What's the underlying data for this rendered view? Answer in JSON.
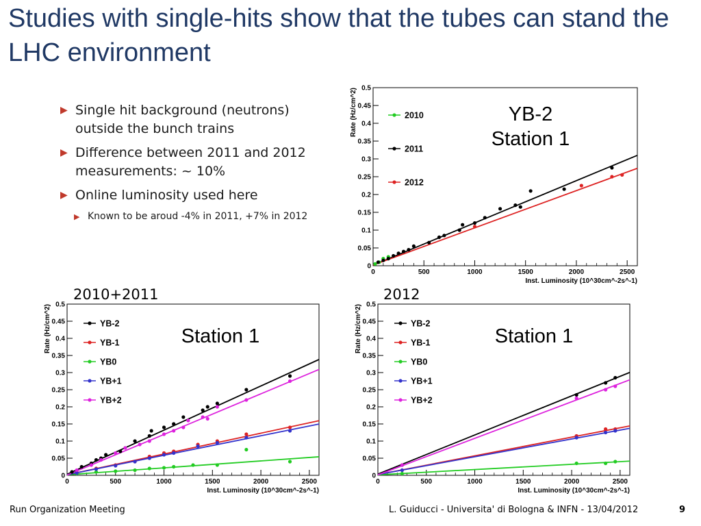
{
  "slide": {
    "title": "Studies with single-hits show that the tubes can stand the LHC environment",
    "bullets": [
      "Single hit background (neutrons) outside the bunch trains",
      "Difference between 2011 and 2012 measurements: ~ 10%",
      "Online luminosity used here"
    ],
    "sub_bullets": [
      "Known to be aroud -4% in 2011, +7% in 2012"
    ],
    "footer_left": "Run Organization Meeting",
    "footer_center": "L. Guiducci - Universita' di Bologna & INFN - 13/04/2012",
    "page_number": "9"
  },
  "chart_data": [
    {
      "type": "scatter",
      "panel_label": "",
      "title_lines": [
        "YB-2",
        "Station 1"
      ],
      "xlabel": "Inst. Luminosity (10^30cm^-2s^-1)",
      "ylabel": "Rate (Hz/cm^2)",
      "xlim": [
        0,
        2600
      ],
      "ylim": [
        0,
        0.5
      ],
      "xticks": [
        0,
        500,
        1000,
        1500,
        2000,
        2500
      ],
      "yticks": [
        0,
        0.05,
        0.1,
        0.15,
        0.2,
        0.25,
        0.3,
        0.35,
        0.4,
        0.45,
        0.5
      ],
      "legend_position": "top-left",
      "series": [
        {
          "name": "2010",
          "color": "#22cc22",
          "fit": [
            0,
            0
          ],
          "points": [
            [
              20,
              0.005
            ],
            [
              60,
              0.01
            ],
            [
              100,
              0.02
            ],
            [
              150,
              0.025
            ]
          ]
        },
        {
          "name": "2011",
          "color": "#000000",
          "fit": [
            0.0017,
            0.0001186
          ],
          "points": [
            [
              50,
              0.01
            ],
            [
              100,
              0.015
            ],
            [
              150,
              0.02
            ],
            [
              200,
              0.028
            ],
            [
              250,
              0.035
            ],
            [
              300,
              0.04
            ],
            [
              350,
              0.045
            ],
            [
              400,
              0.055
            ],
            [
              550,
              0.065
            ],
            [
              650,
              0.08
            ],
            [
              700,
              0.085
            ],
            [
              850,
              0.1
            ],
            [
              880,
              0.115
            ],
            [
              1000,
              0.12
            ],
            [
              1100,
              0.135
            ],
            [
              1250,
              0.16
            ],
            [
              1400,
              0.17
            ],
            [
              1450,
              0.165
            ],
            [
              1550,
              0.21
            ],
            [
              1880,
              0.215
            ],
            [
              2350,
              0.275
            ]
          ]
        },
        {
          "name": "2012",
          "color": "#dd2222",
          "fit": [
            0.0019,
            0.0001045
          ],
          "points": [
            [
              1000,
              0.11
            ],
            [
              2050,
              0.225
            ],
            [
              2350,
              0.25
            ],
            [
              2450,
              0.255
            ]
          ]
        }
      ]
    },
    {
      "type": "scatter",
      "panel_label": "2010+2011",
      "title_lines": [
        "Station 1"
      ],
      "xlabel": "Inst. Luminosity (10^30cm^-2s^-1)",
      "ylabel": "Rate (Hz/cm^2)",
      "xlim": [
        0,
        2600
      ],
      "ylim": [
        0,
        0.5
      ],
      "xticks": [
        0,
        500,
        1000,
        1500,
        2000,
        2500
      ],
      "yticks": [
        0,
        0.05,
        0.1,
        0.15,
        0.2,
        0.25,
        0.3,
        0.35,
        0.4,
        0.45,
        0.5
      ],
      "legend_position": "top-left",
      "series": [
        {
          "name": "YB-2",
          "color": "#000000",
          "fit": [
            0.0031,
            0.0001289
          ],
          "points": [
            [
              50,
              0.01
            ],
            [
              150,
              0.025
            ],
            [
              250,
              0.035
            ],
            [
              300,
              0.045
            ],
            [
              350,
              0.05
            ],
            [
              400,
              0.06
            ],
            [
              550,
              0.07
            ],
            [
              700,
              0.1
            ],
            [
              850,
              0.115
            ],
            [
              870,
              0.13
            ],
            [
              1000,
              0.14
            ],
            [
              1100,
              0.15
            ],
            [
              1200,
              0.17
            ],
            [
              1400,
              0.19
            ],
            [
              1450,
              0.2
            ],
            [
              1550,
              0.21
            ],
            [
              1850,
              0.25
            ],
            [
              2300,
              0.29
            ]
          ]
        },
        {
          "name": "YB-1",
          "color": "#dd2222",
          "fit": [
            0.0014,
            6.08e-05
          ],
          "points": [
            [
              100,
              0.008
            ],
            [
              300,
              0.02
            ],
            [
              500,
              0.03
            ],
            [
              700,
              0.04
            ],
            [
              850,
              0.055
            ],
            [
              1000,
              0.065
            ],
            [
              1100,
              0.07
            ],
            [
              1350,
              0.09
            ],
            [
              1550,
              0.1
            ],
            [
              1850,
              0.12
            ],
            [
              2300,
              0.14
            ]
          ]
        },
        {
          "name": "YB0",
          "color": "#22cc22",
          "fit": [
            0.0016,
            2.02e-05
          ],
          "points": [
            [
              100,
              0.005
            ],
            [
              300,
              0.01
            ],
            [
              500,
              0.012
            ],
            [
              700,
              0.015
            ],
            [
              850,
              0.02
            ],
            [
              1000,
              0.022
            ],
            [
              1100,
              0.025
            ],
            [
              1300,
              0.03
            ],
            [
              1550,
              0.03
            ],
            [
              1850,
              0.075
            ],
            [
              2300,
              0.04
            ]
          ]
        },
        {
          "name": "YB+1",
          "color": "#3333cc",
          "fit": [
            0.0017,
            5.69e-05
          ],
          "points": [
            [
              100,
              0.007
            ],
            [
              300,
              0.018
            ],
            [
              500,
              0.028
            ],
            [
              700,
              0.04
            ],
            [
              850,
              0.05
            ],
            [
              1000,
              0.06
            ],
            [
              1100,
              0.065
            ],
            [
              1350,
              0.085
            ],
            [
              1550,
              0.095
            ],
            [
              1850,
              0.11
            ],
            [
              2300,
              0.13
            ]
          ]
        },
        {
          "name": "YB+2",
          "color": "#dd22dd",
          "fit": [
            0.0007,
            0.0001186
          ],
          "points": [
            [
              100,
              0.015
            ],
            [
              250,
              0.03
            ],
            [
              350,
              0.045
            ],
            [
              500,
              0.065
            ],
            [
              600,
              0.08
            ],
            [
              750,
              0.09
            ],
            [
              850,
              0.1
            ],
            [
              1000,
              0.12
            ],
            [
              1100,
              0.13
            ],
            [
              1200,
              0.14
            ],
            [
              1250,
              0.16
            ],
            [
              1400,
              0.17
            ],
            [
              1450,
              0.165
            ],
            [
              1550,
              0.2
            ],
            [
              1850,
              0.22
            ],
            [
              2300,
              0.275
            ]
          ]
        }
      ]
    },
    {
      "type": "scatter",
      "panel_label": "2012",
      "title_lines": [
        "Station 1"
      ],
      "xlabel": "Inst. Luminosity (10^30cm^-2s^-1)",
      "ylabel": "Rate (Hz/cm^2)",
      "xlim": [
        0,
        2600
      ],
      "ylim": [
        0,
        0.5
      ],
      "xticks": [
        0,
        500,
        1000,
        1500,
        2000,
        2500
      ],
      "yticks": [
        0,
        0.05,
        0.1,
        0.15,
        0.2,
        0.25,
        0.3,
        0.35,
        0.4,
        0.45,
        0.5
      ],
      "legend_position": "top-left",
      "series": [
        {
          "name": "YB-2",
          "color": "#000000",
          "fit": [
            0.0036,
            0.0001142
          ],
          "points": [
            [
              250,
              0.03
            ],
            [
              2050,
              0.235
            ],
            [
              2350,
              0.27
            ],
            [
              2450,
              0.285
            ]
          ]
        },
        {
          "name": "YB-1",
          "color": "#dd2222",
          "fit": [
            0.0023,
            5.46e-05
          ],
          "points": [
            [
              250,
              0.015
            ],
            [
              2050,
              0.115
            ],
            [
              2350,
              0.135
            ],
            [
              2450,
              0.135
            ]
          ]
        },
        {
          "name": "YB0",
          "color": "#22cc22",
          "fit": [
            0.0014,
            1.54e-05
          ],
          "points": [
            [
              250,
              0.005
            ],
            [
              2050,
              0.035
            ],
            [
              2350,
              0.035
            ],
            [
              2450,
              0.04
            ]
          ]
        },
        {
          "name": "YB+1",
          "color": "#3333cc",
          "fit": [
            0.0023,
            5.19e-05
          ],
          "points": [
            [
              250,
              0.015
            ],
            [
              2050,
              0.11
            ],
            [
              2350,
              0.125
            ],
            [
              2450,
              0.13
            ]
          ]
        },
        {
          "name": "YB+2",
          "color": "#dd22dd",
          "fit": [
            0.0012,
            0.0001068
          ],
          "points": [
            [
              250,
              0.03
            ],
            [
              2050,
              0.225
            ],
            [
              2350,
              0.25
            ],
            [
              2450,
              0.26
            ]
          ]
        }
      ]
    }
  ]
}
